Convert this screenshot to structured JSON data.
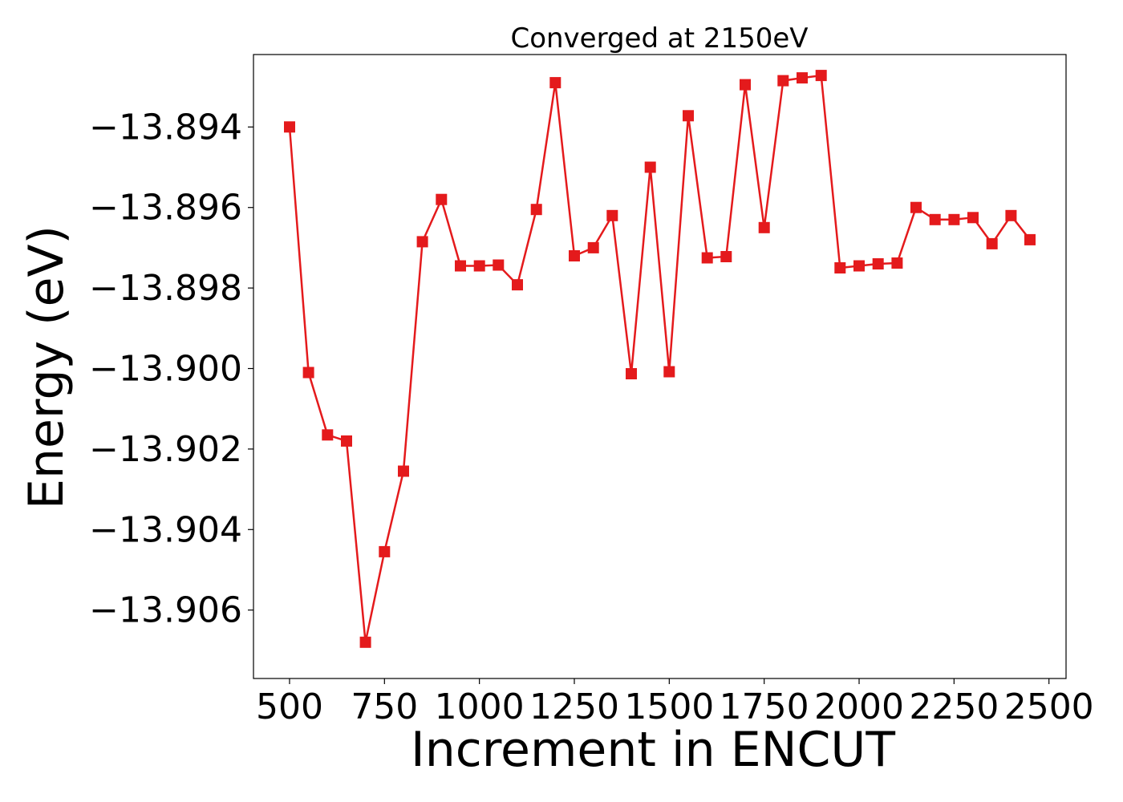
{
  "chart_data": {
    "type": "line",
    "title": "Converged at 2150eV",
    "xlabel": "Increment in ENCUT",
    "ylabel": "Energy (eV)",
    "xlim": [
      405,
      2545
    ],
    "ylim": [
      -13.9077,
      -13.8922
    ],
    "xticks": [
      500,
      750,
      1000,
      1250,
      1500,
      1750,
      2000,
      2250,
      2500
    ],
    "xtick_labels": [
      "500",
      "750",
      "1000",
      "1250",
      "1500",
      "1750",
      "2000",
      "2250",
      "2500"
    ],
    "yticks": [
      -13.894,
      -13.896,
      -13.898,
      -13.9,
      -13.902,
      -13.904,
      -13.906
    ],
    "ytick_labels": [
      "−13.894",
      "−13.896",
      "−13.898",
      "−13.900",
      "−13.902",
      "−13.904",
      "−13.906"
    ],
    "grid": false,
    "marker": "square",
    "color": "#e41a1c",
    "x": [
      500,
      550,
      600,
      650,
      700,
      750,
      800,
      850,
      900,
      950,
      1000,
      1050,
      1100,
      1150,
      1200,
      1250,
      1300,
      1350,
      1400,
      1450,
      1500,
      1550,
      1600,
      1650,
      1700,
      1750,
      1800,
      1850,
      1900,
      1950,
      2000,
      2050,
      2100,
      2150,
      2200,
      2250,
      2300,
      2350,
      2400,
      2450
    ],
    "y": [
      -13.894,
      -13.9001,
      -13.90165,
      -13.9018,
      -13.9068,
      -13.90455,
      -13.90255,
      -13.89685,
      -13.8958,
      -13.89745,
      -13.89745,
      -13.89743,
      -13.89792,
      -13.89605,
      -13.8929,
      -13.8972,
      -13.897,
      -13.8962,
      -13.90013,
      -13.895,
      -13.90008,
      -13.89372,
      -13.89725,
      -13.89722,
      -13.89295,
      -13.8965,
      -13.89285,
      -13.89278,
      -13.89272,
      -13.8975,
      -13.89745,
      -13.8974,
      -13.89738,
      -13.896,
      -13.8963,
      -13.8963,
      -13.89625,
      -13.8969,
      -13.8962,
      -13.8968
    ]
  }
}
